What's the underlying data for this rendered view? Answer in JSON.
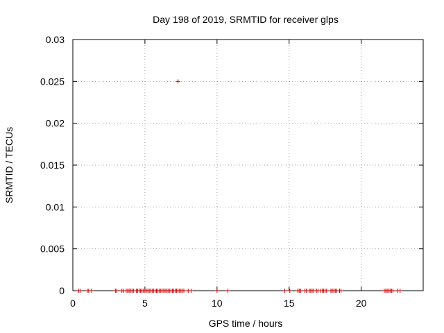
{
  "chart_data": {
    "type": "scatter",
    "title": "Day 198 of 2019, SRMTID for receiver glps",
    "xlabel": "GPS time / hours",
    "ylabel": "SRMTID / TECUs",
    "xlim": [
      0,
      24.3
    ],
    "ylim": [
      0,
      0.03
    ],
    "xticks": [
      0,
      5,
      10,
      15,
      20
    ],
    "xtick_labels": [
      "0",
      "5",
      "10",
      "15",
      "20"
    ],
    "yticks": [
      0,
      0.005,
      0.01,
      0.015,
      0.02,
      0.025,
      0.03
    ],
    "ytick_labels": [
      "0",
      "0.005",
      "0.01",
      "0.015",
      "0.02",
      "0.025",
      "0.03"
    ],
    "grid": true,
    "marker": "plus",
    "color": "#cc0000",
    "series": [
      {
        "x": [
          0.4,
          0.5,
          1.0,
          1.1,
          1.3,
          2.95,
          3.05,
          3.4,
          3.5,
          3.7,
          3.8,
          3.9,
          4.0,
          4.1,
          4.2,
          4.4,
          4.5,
          4.6,
          4.7,
          4.8,
          4.9,
          5.0,
          5.1,
          5.2,
          5.3,
          5.4,
          5.5,
          5.6,
          5.7,
          5.8,
          5.9,
          6.0,
          6.1,
          6.2,
          6.3,
          6.4,
          6.5,
          6.6,
          6.7,
          6.8,
          6.9,
          7.0,
          7.1,
          7.2,
          7.3,
          7.4,
          7.5,
          7.6,
          7.7,
          8.0,
          8.2,
          10.0,
          10.75,
          14.7,
          15.05,
          15.6,
          15.7,
          15.8,
          16.1,
          16.2,
          16.4,
          16.5,
          16.6,
          16.7,
          16.9,
          17.0,
          17.2,
          17.3,
          17.4,
          17.5,
          17.6,
          17.9,
          18.0,
          18.1,
          18.2,
          18.3,
          18.5,
          18.6,
          21.6,
          21.7,
          21.8,
          21.9,
          22.0,
          22.1,
          22.2,
          22.5,
          22.7,
          7.3
        ],
        "y": [
          0,
          0,
          0,
          0,
          0,
          0,
          0,
          0,
          0,
          0,
          0,
          0,
          0,
          0,
          0,
          0,
          0,
          0,
          0,
          0,
          0,
          0,
          0,
          0,
          0,
          0,
          0,
          0,
          0,
          0,
          0,
          0,
          0,
          0,
          0,
          0,
          0,
          0,
          0,
          0,
          0,
          0,
          0,
          0,
          0,
          0,
          0,
          0,
          0,
          0,
          0,
          0,
          0,
          0,
          0,
          0,
          0,
          0,
          0,
          0,
          0,
          0,
          0,
          0,
          0,
          0,
          0,
          0,
          0,
          0,
          0,
          0,
          0,
          0,
          0,
          0,
          0,
          0,
          0,
          0,
          0,
          0,
          0,
          0,
          0,
          0,
          0,
          0.025
        ]
      }
    ]
  }
}
